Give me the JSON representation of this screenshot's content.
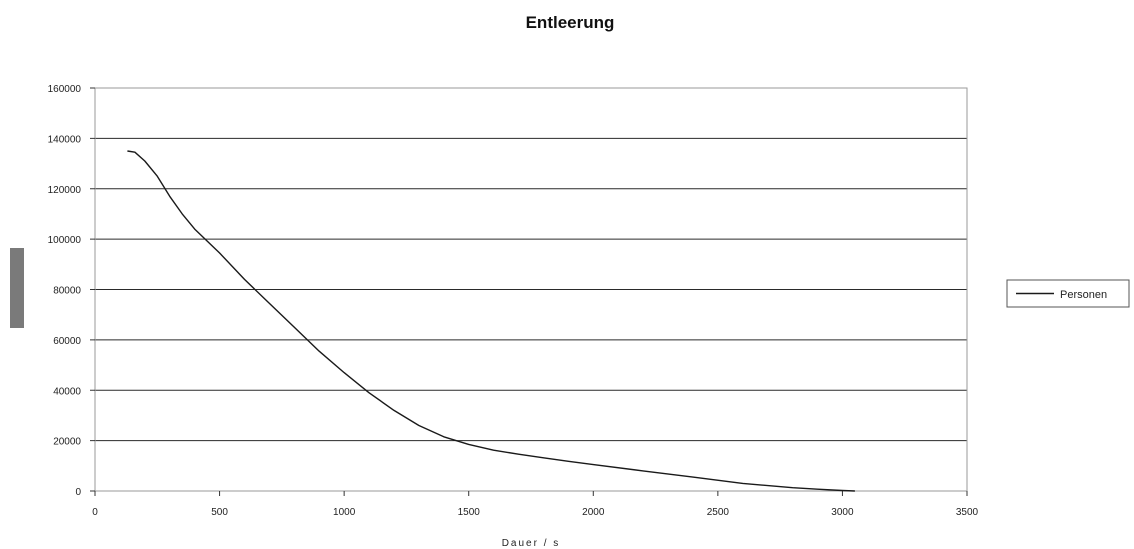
{
  "chart_data": {
    "type": "line",
    "title": "Entleerung",
    "xlabel": "Dauer / s",
    "ylabel": "",
    "xlim": [
      0,
      3500
    ],
    "ylim": [
      0,
      160000
    ],
    "x_ticks": [
      "0",
      "500",
      "1000",
      "1500",
      "2000",
      "2500",
      "3000",
      "3500"
    ],
    "y_ticks": [
      "0",
      "20000",
      "40000",
      "60000",
      "80000",
      "100000",
      "120000",
      "140000",
      "160000"
    ],
    "grid": "horizontal",
    "legend_position": "right",
    "series": [
      {
        "name": "Personen",
        "color": "#1a1a1a",
        "x": [
          130,
          160,
          200,
          250,
          300,
          350,
          400,
          500,
          600,
          700,
          800,
          900,
          1000,
          1100,
          1200,
          1300,
          1400,
          1500,
          1600,
          1700,
          1800,
          1900,
          2000,
          2200,
          2400,
          2600,
          2800,
          2900,
          3000,
          3050
        ],
        "y": [
          135000,
          134500,
          131000,
          125000,
          117000,
          110000,
          104000,
          94500,
          84000,
          74500,
          65000,
          55500,
          47000,
          39000,
          32000,
          26000,
          21500,
          18500,
          16200,
          14600,
          13200,
          11800,
          10500,
          8000,
          5500,
          3000,
          1300,
          700,
          200,
          0
        ]
      }
    ]
  }
}
